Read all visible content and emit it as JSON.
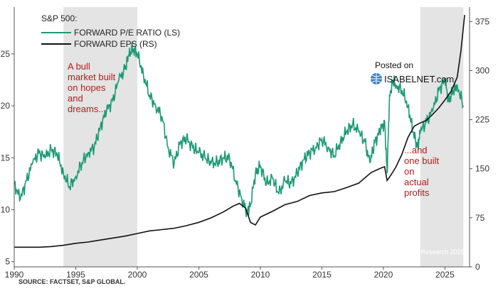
{
  "chart_data": {
    "type": "line",
    "title": "S&P 500:",
    "series": [
      {
        "name": "FORWARD P/E RATIO (LS)",
        "axis": "left",
        "color": "#1a9a73",
        "x": [
          1990,
          1990.5,
          1991,
          1991.5,
          1992,
          1992.5,
          1993,
          1993.5,
          1994,
          1994.5,
          1995,
          1995.5,
          1996,
          1996.5,
          1997,
          1997.5,
          1998,
          1998.5,
          1999,
          1999.3,
          1999.6,
          2000,
          2000.5,
          2001,
          2001.5,
          2002,
          2002.5,
          2003,
          2003.5,
          2004,
          2004.5,
          2005,
          2005.5,
          2006,
          2006.5,
          2007,
          2007.5,
          2008,
          2008.5,
          2008.9,
          2009.2,
          2009.6,
          2010,
          2010.5,
          2011,
          2011.5,
          2012,
          2012.5,
          2013,
          2013.5,
          2014,
          2014.5,
          2015,
          2015.5,
          2016,
          2016.5,
          2017,
          2017.5,
          2018,
          2018.5,
          2018.9,
          2019.3,
          2019.7,
          2020.1,
          2020.3,
          2020.5,
          2020.8,
          2021,
          2021.5,
          2022,
          2022.4,
          2022.8,
          2023,
          2023.5,
          2024,
          2024.5,
          2025,
          2025.3,
          2025.7,
          2026,
          2026.5
        ],
        "values": [
          12.5,
          11.0,
          12.8,
          14.5,
          15.5,
          15.0,
          15.8,
          15.3,
          13.5,
          12.2,
          13.2,
          14.5,
          15.5,
          16.0,
          18.0,
          19.5,
          20.5,
          22.5,
          23.5,
          24.8,
          25.5,
          25.0,
          23.0,
          21.0,
          20.0,
          19.0,
          16.0,
          14.5,
          16.5,
          16.8,
          16.0,
          15.5,
          15.0,
          14.5,
          14.5,
          15.0,
          15.0,
          12.8,
          11.0,
          9.8,
          10.5,
          13.5,
          14.2,
          12.5,
          13.0,
          11.5,
          12.8,
          12.5,
          13.5,
          14.8,
          15.5,
          16.0,
          16.8,
          16.0,
          15.2,
          16.5,
          17.5,
          18.2,
          17.5,
          16.5,
          14.5,
          16.5,
          17.5,
          18.5,
          13.5,
          21.0,
          22.5,
          22.0,
          21.5,
          20.0,
          17.5,
          16.0,
          17.5,
          18.5,
          19.5,
          21.5,
          22.5,
          20.5,
          21.5,
          22.0,
          20.0
        ]
      },
      {
        "name": "FORWARD EPS (RS)",
        "axis": "right",
        "color": "#111111",
        "x": [
          1990,
          1991,
          1992,
          1993,
          1994,
          1995,
          1996,
          1997,
          1998,
          1999,
          2000,
          2001,
          2002,
          2003,
          2004,
          2005,
          2006,
          2007,
          2007.8,
          2008.3,
          2008.8,
          2009.2,
          2009.6,
          2010,
          2011,
          2012,
          2013,
          2014,
          2015,
          2016,
          2017,
          2018,
          2019,
          2019.8,
          2020.1,
          2020.3,
          2020.6,
          2021,
          2021.5,
          2022,
          2022.5,
          2023,
          2023.5,
          2024,
          2024.5,
          2025,
          2025.5,
          2026,
          2026.3,
          2026.6
        ],
        "values": [
          30,
          30,
          30,
          31,
          33,
          36,
          38,
          41,
          44,
          47,
          51,
          55,
          57,
          59,
          63,
          68,
          75,
          84,
          93,
          97,
          90,
          68,
          64,
          76,
          85,
          95,
          100,
          109,
          113,
          115,
          121,
          128,
          144,
          151,
          153,
          132,
          140,
          152,
          172,
          198,
          215,
          220,
          224,
          233,
          243,
          255,
          268,
          290,
          330,
          385
        ]
      }
    ],
    "x_range": [
      1990,
      2027
    ],
    "x_ticks": [
      1990,
      1995,
      2000,
      2005,
      2010,
      2015,
      2020,
      2025
    ],
    "y_left_range": [
      4.5,
      29.5
    ],
    "y_left_ticks": [
      5,
      10,
      15,
      20,
      25
    ],
    "y_right_range": [
      0,
      397
    ],
    "y_right_ticks": [
      0,
      75,
      150,
      225,
      300,
      375
    ],
    "shaded_periods": [
      {
        "start": 1994,
        "end": 2000
      },
      {
        "start": 2023,
        "end": 2026.5
      }
    ],
    "annotations": [
      [
        "A bull",
        "market built",
        "on hopes",
        "and",
        "dreams..."
      ],
      [
        "...and",
        "one built",
        "on",
        "actual",
        "profits"
      ]
    ],
    "source": "SOURCE: FACTSET, S&P GLOBAL.",
    "credit": "© BCA Research 2026",
    "grid": false,
    "legend_placement": "top-left"
  },
  "watermark": {
    "posted_on": "Posted on",
    "site": "ISABELNET.com"
  },
  "colors": {
    "shade": "#e4e4e4",
    "pe_line": "#1a9a73",
    "eps_line": "#111111",
    "annotation": "#b31b1b"
  }
}
